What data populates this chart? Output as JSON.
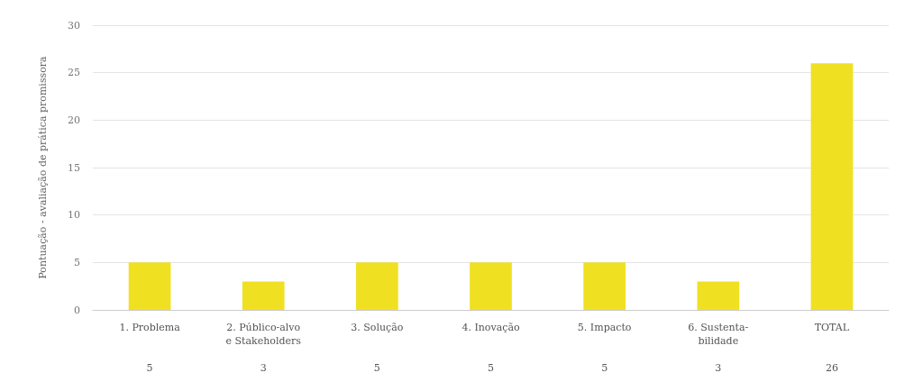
{
  "chart_data": {
    "type": "bar",
    "ylabel": "Pontuação - avaliação de prática promissora",
    "categories": [
      "1. Problema",
      "2. Público-alvo\ne Stakeholders",
      "3. Solução",
      "4. Inovação",
      "5. Impacto",
      "6. Sustenta-\nbilidade",
      "TOTAL"
    ],
    "values": [
      5,
      3,
      5,
      5,
      5,
      3,
      26
    ],
    "color": "#f0e022",
    "ylim": [
      0,
      30
    ],
    "yticks": [
      0,
      5,
      10,
      15,
      20,
      25,
      30
    ],
    "grid": "y",
    "data_labels": true
  }
}
